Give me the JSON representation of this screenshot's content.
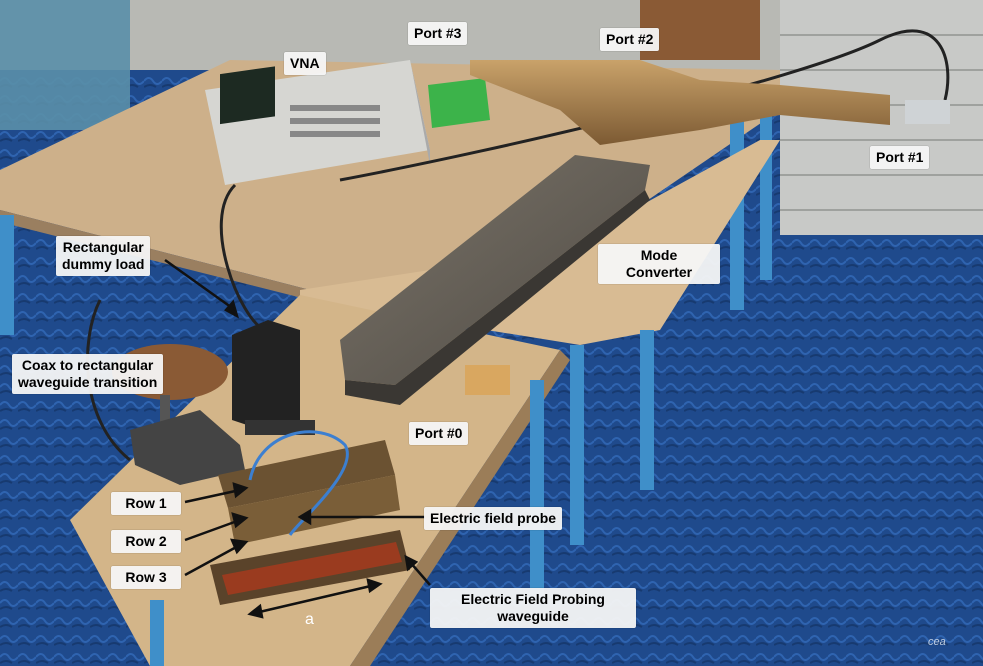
{
  "labels": {
    "vna": "VNA",
    "port3": "Port #3",
    "port2": "Port #2",
    "port1": "Port #1",
    "port0": "Port #0",
    "mode_converter_l1": "Mode",
    "mode_converter_l2": "Converter",
    "dummy_load_l1": "Rectangular",
    "dummy_load_l2": "dummy load",
    "coax_l1": "Coax to rectangular",
    "coax_l2": "waveguide transition",
    "row1": "Row 1",
    "row2": "Row 2",
    "row3": "Row 3",
    "probe": "Electric field probe",
    "probing_wg_l1": "Electric Field Probing",
    "probing_wg_l2": "waveguide",
    "dimension_a": "a",
    "logo": "cea"
  }
}
